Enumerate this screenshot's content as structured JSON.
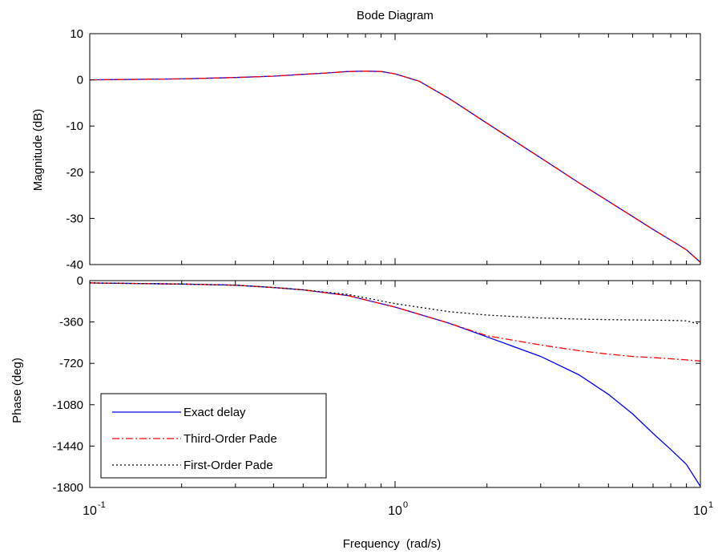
{
  "title": "Bode Diagram",
  "chart_data": [
    {
      "type": "line",
      "panel": "magnitude",
      "ylabel": "Magnitude (dB)",
      "xscale": "log",
      "xlim": [
        0.1,
        10
      ],
      "ylim": [
        -40,
        10
      ],
      "yticks": [
        10,
        0,
        -10,
        -20,
        -30,
        -40
      ],
      "grid": false,
      "series": [
        {
          "name": "Exact delay",
          "color": "#0000ff",
          "style": "solid",
          "x": [
            0.1,
            0.2,
            0.3,
            0.4,
            0.5,
            0.6,
            0.7,
            0.8,
            0.9,
            1.0,
            1.2,
            1.5,
            2,
            3,
            4,
            5,
            6,
            7,
            8,
            9,
            10
          ],
          "y": [
            0.0,
            0.2,
            0.5,
            0.8,
            1.2,
            1.5,
            1.8,
            1.9,
            1.8,
            1.3,
            -0.3,
            -4.0,
            -9.4,
            -16.9,
            -22.3,
            -26.3,
            -29.6,
            -32.4,
            -34.7,
            -36.8,
            -39.5
          ]
        },
        {
          "name": "Third-Order Pade",
          "color": "#ff0000",
          "style": "dashdot",
          "x": [
            0.1,
            0.2,
            0.3,
            0.4,
            0.5,
            0.6,
            0.7,
            0.8,
            0.9,
            1.0,
            1.2,
            1.5,
            2,
            3,
            4,
            5,
            6,
            7,
            8,
            9,
            10
          ],
          "y": [
            0.0,
            0.2,
            0.5,
            0.8,
            1.2,
            1.5,
            1.8,
            1.9,
            1.8,
            1.3,
            -0.3,
            -4.0,
            -9.4,
            -16.9,
            -22.3,
            -26.3,
            -29.6,
            -32.4,
            -34.7,
            -36.8,
            -39.5
          ]
        }
      ]
    },
    {
      "type": "line",
      "panel": "phase",
      "xlabel": "Frequency  (rad/s)",
      "ylabel": "Phase (deg)",
      "xscale": "log",
      "xlim": [
        0.1,
        10
      ],
      "ylim": [
        -1800,
        0
      ],
      "yticks": [
        0,
        -360,
        -720,
        -1080,
        -1440,
        -1800
      ],
      "xticks": [
        "10^-1",
        "10^0",
        "10^1"
      ],
      "grid": false,
      "legend_position": "bottom-left",
      "series": [
        {
          "name": "Exact delay",
          "color": "#0000ff",
          "style": "solid",
          "x": [
            0.1,
            0.2,
            0.3,
            0.4,
            0.5,
            0.7,
            1.0,
            1.5,
            2.0,
            3.0,
            4.0,
            5.0,
            6.0,
            7.0,
            8.0,
            9.0,
            10.0
          ],
          "y": [
            -20,
            -30,
            -40,
            -60,
            -80,
            -130,
            -230,
            -370,
            -490,
            -660,
            -820,
            -990,
            -1160,
            -1330,
            -1470,
            -1600,
            -1790
          ]
        },
        {
          "name": "Third-Order Pade",
          "color": "#ff0000",
          "style": "dashdot",
          "x": [
            0.1,
            0.2,
            0.3,
            0.4,
            0.5,
            0.7,
            1.0,
            1.5,
            2.0,
            3.0,
            4.0,
            5.0,
            6.0,
            7.0,
            8.0,
            9.0,
            10.0
          ],
          "y": [
            -20,
            -30,
            -40,
            -60,
            -80,
            -130,
            -230,
            -370,
            -480,
            -560,
            -610,
            -640,
            -660,
            -670,
            -680,
            -690,
            -700
          ]
        },
        {
          "name": "First-Order Pade",
          "color": "#000000",
          "style": "dotted",
          "x": [
            0.1,
            0.2,
            0.3,
            0.4,
            0.5,
            0.7,
            1.0,
            1.5,
            2.0,
            3.0,
            4.0,
            5.0,
            6.0,
            7.0,
            8.0,
            9.0,
            10.0
          ],
          "y": [
            -20,
            -30,
            -40,
            -60,
            -80,
            -120,
            -200,
            -270,
            -300,
            -325,
            -335,
            -340,
            -342,
            -344,
            -346,
            -350,
            -380
          ]
        }
      ]
    }
  ]
}
